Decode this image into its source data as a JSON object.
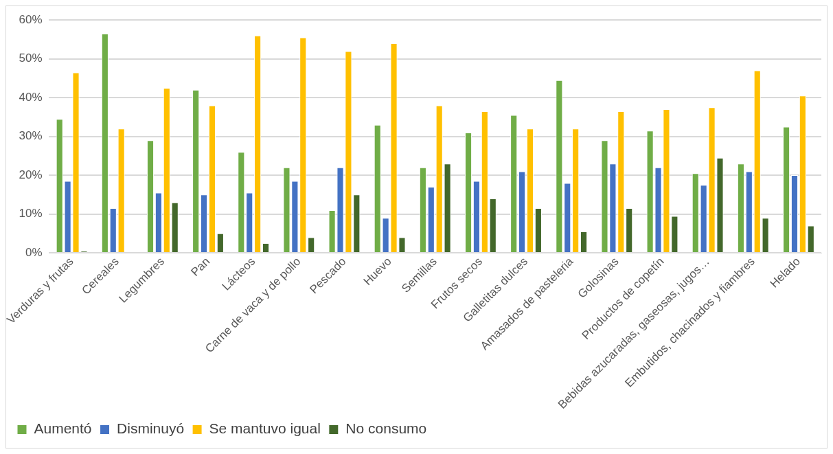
{
  "chart_data": {
    "type": "bar",
    "categories": [
      "Verduras y frutas",
      "Cereales",
      "Legumbres",
      "Pan",
      "Lácteos",
      "Carne de vaca y de pollo",
      "Pescado",
      "Huevo",
      "Semillas",
      "Frutos secos",
      "Galletitas dulces",
      "Amasados de pasteleria",
      "Golosinas",
      "Productos de copetín",
      "Bebidas azucaradas, gaseosas, jugos…",
      "Embutidos, chacinados y fiambres",
      "Helado"
    ],
    "series": [
      {
        "name": "Aumentó",
        "color": "#70ad47",
        "values": [
          34.5,
          56.5,
          29,
          42,
          26,
          22,
          11,
          33,
          22,
          31,
          35.5,
          44.5,
          29,
          31.5,
          20.5,
          23,
          32.5
        ]
      },
      {
        "name": "Disminuyó",
        "color": "#4472c4",
        "values": [
          18.5,
          11.5,
          15.5,
          15,
          15.5,
          18.5,
          22,
          9,
          17,
          18.5,
          21,
          18,
          23,
          22,
          17.5,
          21,
          20
        ]
      },
      {
        "name": "Se mantuvo igual",
        "color": "#ffc000",
        "values": [
          46.5,
          32,
          42.5,
          38,
          56,
          55.5,
          52,
          54,
          38,
          36.5,
          32,
          32,
          36.5,
          37,
          37.5,
          47,
          40.5
        ]
      },
      {
        "name": "No consumo",
        "color": "#43682b",
        "values": [
          0.5,
          0,
          13,
          5,
          2.5,
          4,
          15,
          4,
          23,
          14,
          11.5,
          5.5,
          11.5,
          9.5,
          24.5,
          9,
          7
        ]
      }
    ],
    "ylim": [
      0,
      60
    ],
    "yticks": [
      {
        "value": 0,
        "label": "0%"
      },
      {
        "value": 10,
        "label": "10%"
      },
      {
        "value": 20,
        "label": "20%"
      },
      {
        "value": 30,
        "label": "30%"
      },
      {
        "value": 40,
        "label": "40%"
      },
      {
        "value": 50,
        "label": "50%"
      },
      {
        "value": 60,
        "label": "60%"
      }
    ],
    "grid": "y",
    "legend": "bottom left"
  }
}
